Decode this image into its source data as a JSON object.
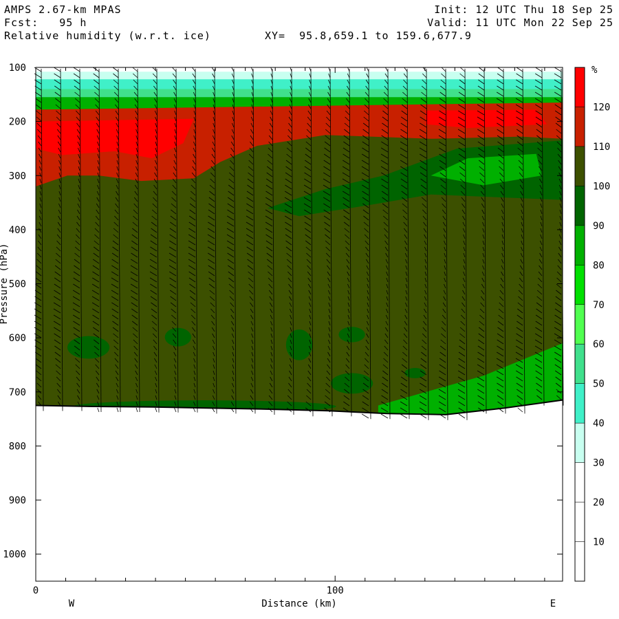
{
  "header": {
    "model": "AMPS 2.67-km MPAS",
    "forecast": "Fcst:   95 h",
    "variable": "Relative humidity (w.r.t. ice)",
    "xy": "XY=  95.8,659.1 to 159.6,677.9",
    "init": "Init: 12 UTC Thu 18 Sep 25",
    "valid": "Valid: 11 UTC Mon 22 Sep 25"
  },
  "colorbar": {
    "unit": "%",
    "levels": [
      "10",
      "20",
      "30",
      "40",
      "50",
      "60",
      "70",
      "80",
      "90",
      "100",
      "110",
      "120"
    ],
    "colors": [
      "#ffffff",
      "#ffffff",
      "#ffffff",
      "#c8fff0",
      "#40f0c8",
      "#40e08c",
      "#50ff50",
      "#00e000",
      "#00b000",
      "#006400",
      "#3c5000",
      "#c82000",
      "#ff0000"
    ]
  },
  "chart_data": {
    "type": "heatmap",
    "title": "Relative humidity (w.r.t. ice)",
    "xlabel": "Distance (km)",
    "ylabel": "Pressure (hPa)",
    "x_ticks": [
      0,
      100
    ],
    "y_ticks": [
      100,
      200,
      300,
      400,
      500,
      600,
      700,
      800,
      900,
      1000
    ],
    "x_range": [
      0,
      176
    ],
    "y_range": [
      100,
      1050
    ],
    "x_end_labels": {
      "left": "W",
      "right": "E"
    },
    "terrain_surface_hPa": [
      725,
      727,
      728,
      730,
      732,
      735,
      740,
      742,
      730,
      715
    ],
    "layers": [
      {
        "name": "120+",
        "p_range": [
          190,
          235
        ],
        "color": "#ff0000"
      },
      {
        "name": "110-120",
        "p_range": [
          175,
          310
        ],
        "color": "#c82000"
      },
      {
        "name": "100-110",
        "p_range": [
          300,
          740
        ],
        "color": "#3c5000"
      },
      {
        "name": "90-100",
        "note": "patches",
        "color": "#006400"
      },
      {
        "name": "80-90",
        "p_range": [
          280,
          330
        ],
        "color": "#00b000"
      }
    ]
  }
}
